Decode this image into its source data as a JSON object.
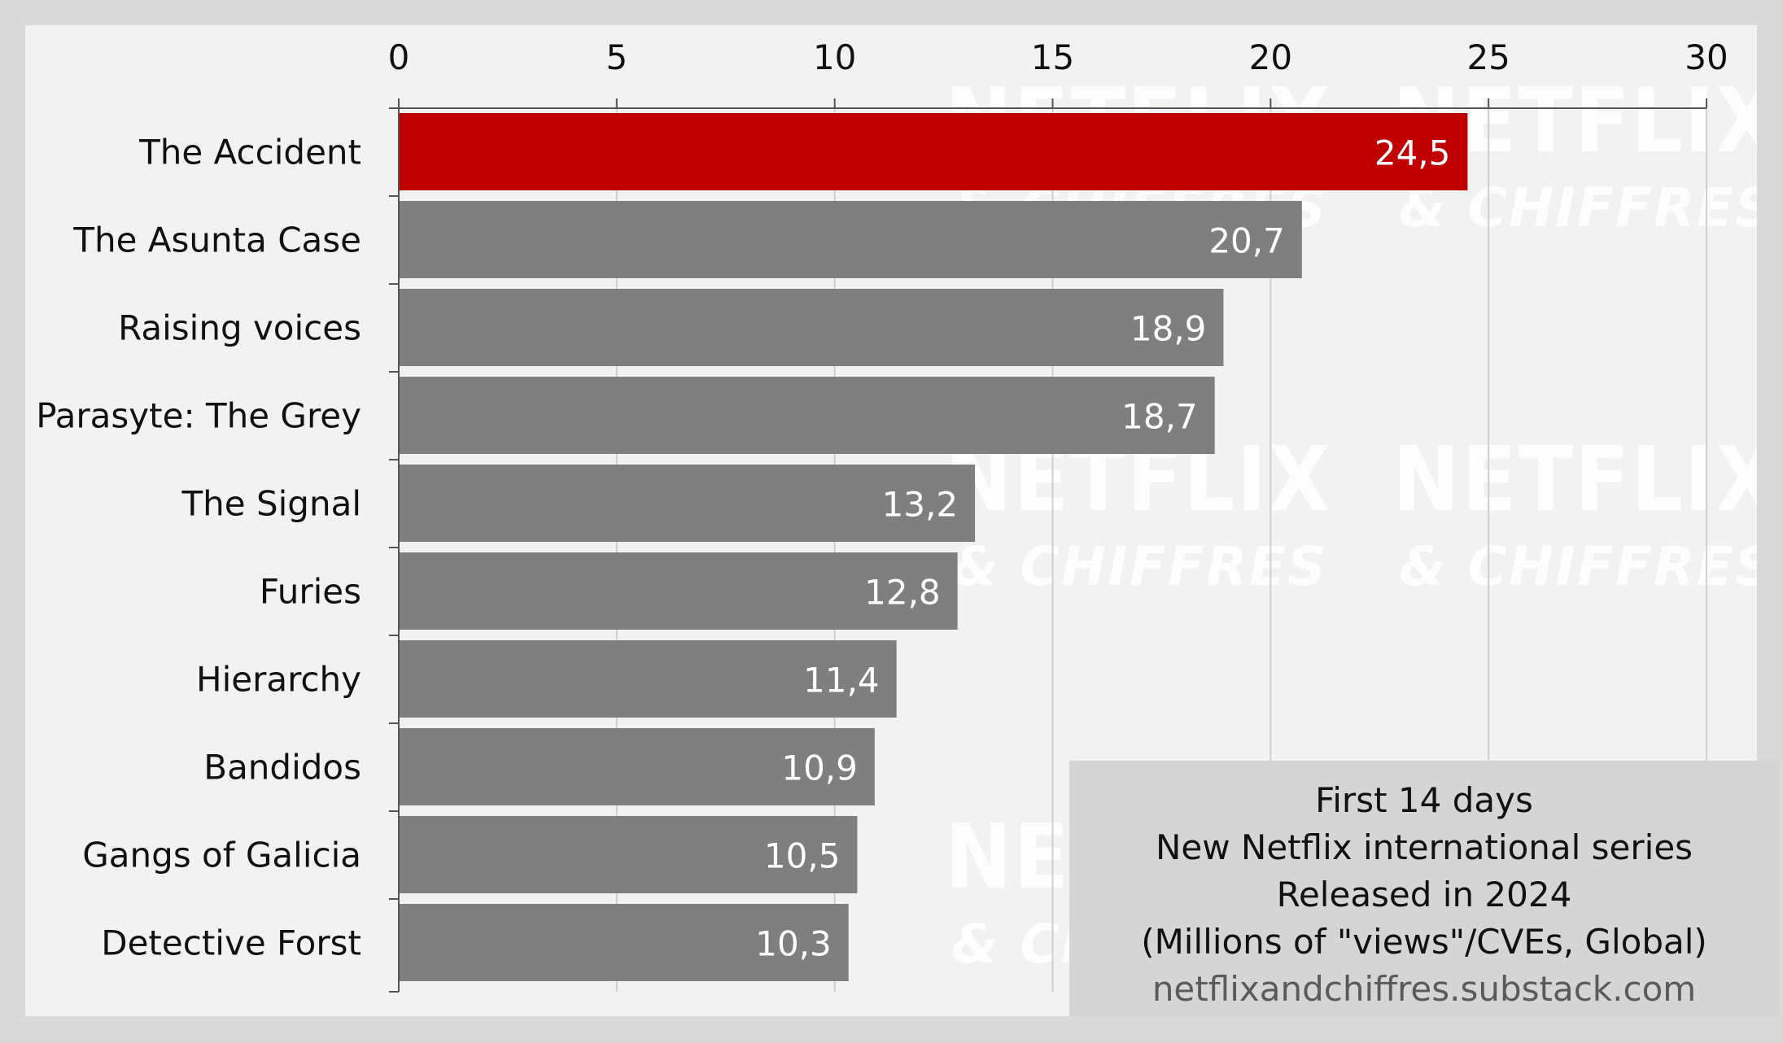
{
  "chart_data": {
    "type": "bar",
    "orientation": "horizontal",
    "categories": [
      "The Accident",
      "The Asunta Case",
      "Raising voices",
      "Parasyte: The Grey",
      "The Signal",
      "Furies",
      "Hierarchy",
      "Bandidos",
      "Gangs of Galicia",
      "Detective Forst"
    ],
    "values": [
      24.5,
      20.7,
      18.9,
      18.7,
      13.2,
      12.8,
      11.4,
      10.9,
      10.5,
      10.3
    ],
    "value_labels": [
      "24,5",
      "20,7",
      "18,9",
      "18,7",
      "13,2",
      "12,8",
      "11,4",
      "10,9",
      "10,5",
      "10,3"
    ],
    "xlim": [
      0,
      30
    ],
    "x_ticks": [
      0,
      5,
      10,
      15,
      20,
      25,
      30
    ],
    "x_tick_labels": [
      "0",
      "5",
      "10",
      "15",
      "20",
      "25",
      "30"
    ],
    "x_axis_position": "top",
    "grid": true,
    "highlight_color": "#c00000",
    "bar_color": "#7f7f7f",
    "title": "",
    "xlabel": "",
    "ylabel": ""
  },
  "info_box": {
    "lines": [
      "First 14 days",
      "New Netflix international series",
      "Released in 2024",
      "(Millions of \"views\"/CVEs, Global)"
    ],
    "url": "netflixandchiffres.substack.com"
  },
  "watermark": {
    "line1": "NETFLIX",
    "line2": "& CHIFFRES"
  },
  "colors": {
    "background": "#d9d9d9",
    "plot_background": "#f2f2f2",
    "info_box_background": "#d5d5d5"
  }
}
